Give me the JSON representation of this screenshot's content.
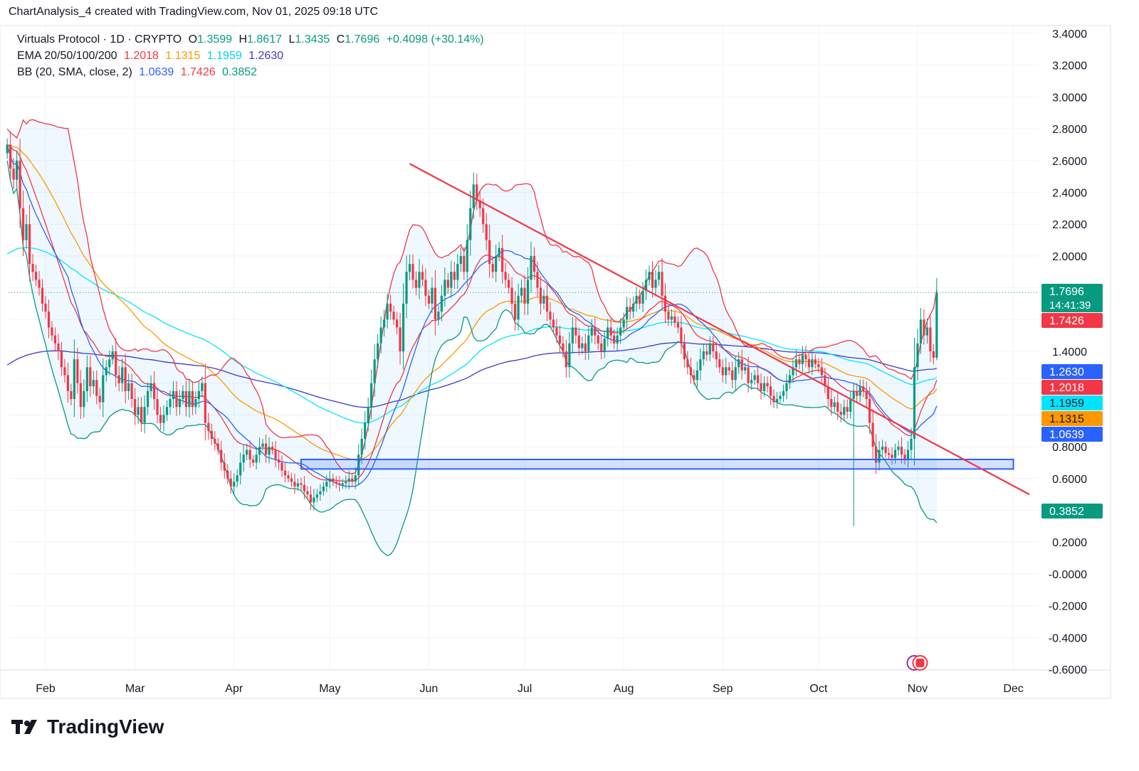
{
  "header": {
    "text": "ChartAnalysis_4 created with TradingView.com, Nov 01, 2025 09:18 UTC"
  },
  "legend": {
    "symbol": "Virtuals Protocol · 1D · CRYPTO",
    "ohlc": [
      {
        "k": "O",
        "v": "1.3599"
      },
      {
        "k": "H",
        "v": "1.8617"
      },
      {
        "k": "L",
        "v": "1.3435"
      },
      {
        "k": "C",
        "v": "1.7696"
      }
    ],
    "change": "+0.4098 (+30.14%)",
    "ema_label": "EMA 20/50/100/200",
    "ema_values": [
      "1.2018",
      "1.1315",
      "1.1959",
      "1.2630"
    ],
    "bb_label": "BB (20, SMA, close, 2)",
    "bb_values": [
      "1.0639",
      "1.7426",
      "0.3852"
    ]
  },
  "footer": {
    "brand": "TradingView"
  },
  "chart_data": {
    "type": "candlestick",
    "x_ticks": [
      "Feb",
      "Mar",
      "Apr",
      "May",
      "Jun",
      "Jul",
      "Aug",
      "Sep",
      "Oct",
      "Nov",
      "Dec"
    ],
    "y_ticks": [
      "3.4000",
      "3.2000",
      "3.0000",
      "2.8000",
      "2.6000",
      "2.4000",
      "2.2000",
      "2.0000",
      "1.4000",
      "0.8000",
      "0.6000",
      "0.2000",
      "-0.0000",
      "-0.2000",
      "-0.4000",
      "-0.6000"
    ],
    "ylim": [
      -0.65,
      3.45
    ],
    "price_tags": [
      {
        "label": "1.7696",
        "sub": "14:41:39",
        "value": 1.7696,
        "color": "#089981"
      },
      {
        "label": "1.7426",
        "value": 1.7426,
        "color": "#f23645"
      },
      {
        "label": "1.2630",
        "value": 1.263,
        "color": "#2962ff"
      },
      {
        "label": "1.2018",
        "value": 1.2018,
        "color": "#f23645"
      },
      {
        "label": "1.1959",
        "value": 1.1959,
        "color": "#00e5ff"
      },
      {
        "label": "1.1315",
        "value": 1.1315,
        "color": "#ff9800"
      },
      {
        "label": "1.0639",
        "value": 1.0639,
        "color": "#2962ff"
      },
      {
        "label": "0.3852",
        "value": 0.3852,
        "color": "#089981"
      }
    ],
    "colors": {
      "up": "#089981",
      "down": "#f23645",
      "ema20": "#f23645",
      "ema50": "#ff9800",
      "ema100": "#00e5ff",
      "ema200": "#3f37c9",
      "bb_basis": "#2962ff",
      "bb_upper": "#f23645",
      "bb_lower": "#089981",
      "trendline": "#f23645",
      "zone": "#2962ff"
    },
    "trendline": {
      "from": {
        "date": "2025-05-26",
        "price": 2.58
      },
      "to": {
        "date": "2025-12-06",
        "price": 0.5
      }
    },
    "support_zone": {
      "from": "2025-04-22",
      "to": "2025-12-01",
      "low": 0.66,
      "high": 0.72
    },
    "candles_close": [
      2.7,
      2.55,
      2.48,
      2.6,
      2.3,
      2.1,
      2.2,
      1.95,
      1.9,
      1.85,
      1.8,
      1.7,
      1.65,
      1.55,
      1.5,
      1.45,
      1.4,
      1.3,
      1.25,
      1.15,
      1.1,
      1.35,
      1.2,
      1.05,
      1.15,
      1.3,
      1.18,
      1.22,
      1.12,
      1.08,
      1.25,
      1.3,
      1.35,
      1.4,
      1.25,
      1.2,
      1.3,
      1.15,
      1.2,
      1.1,
      1.0,
      1.05,
      0.95,
      1.05,
      1.15,
      1.2,
      1.1,
      1.0,
      0.95,
      1.0,
      1.05,
      1.1,
      1.15,
      1.05,
      1.1,
      1.15,
      1.05,
      1.15,
      1.05,
      1.1,
      1.15,
      1.2,
      0.95,
      0.9,
      0.85,
      0.82,
      0.78,
      0.7,
      0.65,
      0.6,
      0.55,
      0.58,
      0.62,
      0.7,
      0.75,
      0.78,
      0.72,
      0.7,
      0.75,
      0.8,
      0.82,
      0.75,
      0.8,
      0.78,
      0.72,
      0.7,
      0.65,
      0.62,
      0.6,
      0.58,
      0.55,
      0.57,
      0.56,
      0.52,
      0.5,
      0.45,
      0.48,
      0.5,
      0.52,
      0.55,
      0.58,
      0.6,
      0.58,
      0.57,
      0.56,
      0.57,
      0.58,
      0.6,
      0.58,
      0.62,
      0.75,
      0.85,
      0.95,
      1.05,
      1.2,
      1.35,
      1.45,
      1.55,
      1.6,
      1.7,
      1.65,
      1.6,
      1.55,
      1.4,
      1.7,
      1.9,
      1.95,
      1.85,
      1.8,
      1.9,
      1.85,
      1.75,
      1.7,
      1.8,
      1.6,
      1.65,
      1.75,
      1.85,
      1.8,
      1.9,
      1.85,
      1.95,
      2.0,
      1.9,
      2.1,
      2.3,
      2.45,
      2.35,
      2.3,
      2.2,
      2.1,
      1.95,
      1.9,
      2.0,
      2.05,
      1.9,
      1.85,
      1.8,
      1.7,
      1.6,
      1.75,
      1.8,
      1.7,
      1.85,
      2.0,
      1.9,
      1.8,
      1.7,
      1.75,
      1.65,
      1.6,
      1.55,
      1.5,
      1.45,
      1.4,
      1.3,
      1.45,
      1.55,
      1.5,
      1.42,
      1.45,
      1.4,
      1.5,
      1.55,
      1.5,
      1.45,
      1.4,
      1.48,
      1.55,
      1.5,
      1.45,
      1.5,
      1.55,
      1.6,
      1.68,
      1.65,
      1.7,
      1.75,
      1.7,
      1.78,
      1.85,
      1.9,
      1.8,
      1.85,
      1.9,
      1.75,
      1.65,
      1.6,
      1.62,
      1.58,
      1.55,
      1.45,
      1.35,
      1.3,
      1.25,
      1.22,
      1.28,
      1.35,
      1.4,
      1.38,
      1.45,
      1.4,
      1.35,
      1.3,
      1.25,
      1.3,
      1.28,
      1.22,
      1.3,
      1.35,
      1.28,
      1.3,
      1.2,
      1.22,
      1.25,
      1.2,
      1.15,
      1.2,
      1.18,
      1.12,
      1.08,
      1.1,
      1.12,
      1.15,
      1.2,
      1.25,
      1.3,
      1.35,
      1.32,
      1.38,
      1.35,
      1.3,
      1.35,
      1.32,
      1.3,
      1.25,
      1.18,
      1.1,
      1.05,
      1.08,
      1.02,
      1.0,
      1.05,
      1.02,
      1.1,
      1.15,
      1.12,
      1.18,
      1.15,
      1.1,
      0.95,
      0.8,
      0.7,
      0.78,
      0.8,
      0.76,
      0.75,
      0.73,
      0.78,
      0.8,
      0.75,
      0.72,
      0.78,
      0.85,
      1.3,
      1.45,
      1.6,
      1.5,
      1.55,
      1.4,
      1.36,
      1.77
    ]
  }
}
